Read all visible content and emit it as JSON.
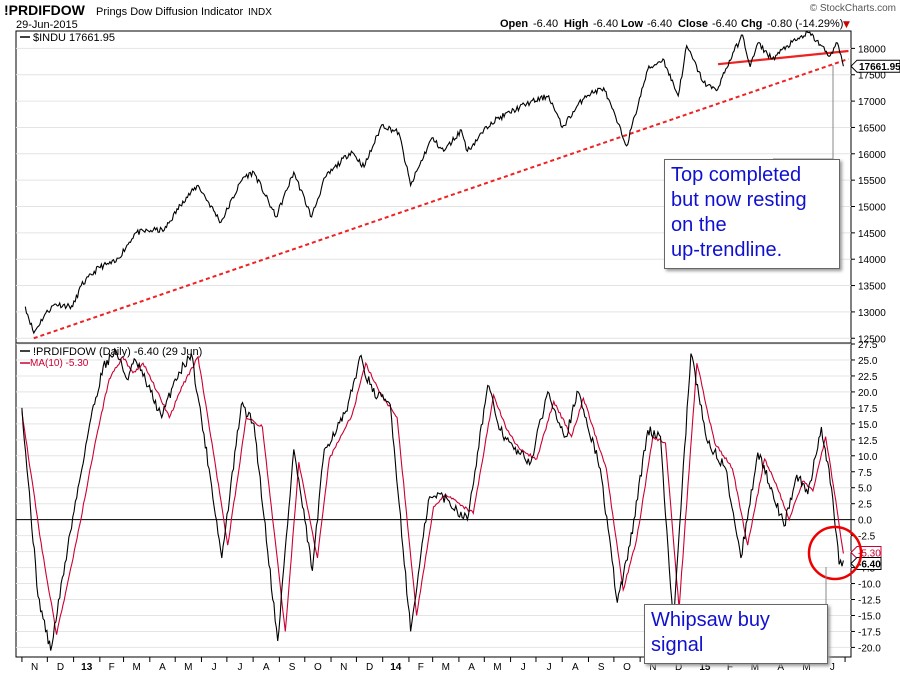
{
  "header": {
    "symbol": "!PRDIFDOW",
    "name": "Prings Dow Diffusion Indicator",
    "exchange": "INDX",
    "date": "29-Jun-2015",
    "brand": "© StockCharts.com",
    "open_label": "Open",
    "open": "-6.40",
    "high_label": "High",
    "high": "-6.40",
    "low_label": "Low",
    "low": "-6.40",
    "close_label": "Close",
    "close": "-6.40",
    "chg_label": "Chg",
    "chg": "-0.80 (-14.29%)",
    "down_arrow": "▼"
  },
  "top_panel": {
    "legend": "$INDU 17661.95",
    "last_value": "17661.95",
    "y_ticks": [
      "12500",
      "13000",
      "13500",
      "14000",
      "14500",
      "15000",
      "15500",
      "16000",
      "16500",
      "17000",
      "17500",
      "18000"
    ]
  },
  "bottom_panel": {
    "legend": "!PRDIFDOW (Daily) -6.40 (29 Jun)",
    "ma_legend": "MA(10) -5.30",
    "last_ma": "-5.30",
    "last_value": "-6.40",
    "y_ticks": [
      "-20.0",
      "-17.5",
      "-15.0",
      "-12.5",
      "-10.0",
      "-7.5",
      "-5.0",
      "-2.5",
      "0.0",
      "2.5",
      "5.0",
      "7.5",
      "10.0",
      "12.5",
      "15.0",
      "17.5",
      "20.0",
      "22.5",
      "25.0",
      "27.5"
    ]
  },
  "x_axis": {
    "labels": [
      "N",
      "D",
      "13",
      "F",
      "M",
      "A",
      "M",
      "J",
      "J",
      "A",
      "S",
      "O",
      "N",
      "D",
      "14",
      "F",
      "M",
      "A",
      "M",
      "J",
      "J",
      "A",
      "S",
      "O",
      "N",
      "D",
      "15",
      "F",
      "M",
      "A",
      "M",
      "J",
      "J"
    ]
  },
  "annotations": {
    "top_callout": [
      "Top completed",
      "but now resting",
      "on the",
      "up-trendline."
    ],
    "bottom_callout": [
      "Whipsaw buy",
      "signal"
    ]
  },
  "colors": {
    "price": "#000000",
    "ma": "#cc0033",
    "trendline": "#ee2222",
    "callout_text": "#1010d0",
    "circle": "#ee0000"
  },
  "chart_data": [
    {
      "type": "line",
      "title": "$INDU 17661.95",
      "x_range": [
        "2012-11",
        "2015-06-29"
      ],
      "ylim": [
        12500,
        18300
      ],
      "series": [
        {
          "name": "$INDU",
          "points": [
            [
              "2012-11-05",
              13100
            ],
            [
              "2012-11-15",
              12600
            ],
            [
              "2012-11-28",
              12950
            ],
            [
              "2012-12-10",
              13150
            ],
            [
              "2012-12-31",
              13100
            ],
            [
              "2013-01-10",
              13500
            ],
            [
              "2013-01-31",
              13850
            ],
            [
              "2013-02-20",
              13950
            ],
            [
              "2013-03-15",
              14500
            ],
            [
              "2013-04-05",
              14550
            ],
            [
              "2013-04-18",
              14550
            ],
            [
              "2013-05-10",
              15100
            ],
            [
              "2013-05-28",
              15400
            ],
            [
              "2013-06-24",
              14700
            ],
            [
              "2013-07-20",
              15550
            ],
            [
              "2013-08-02",
              15650
            ],
            [
              "2013-08-28",
              14800
            ],
            [
              "2013-09-18",
              15650
            ],
            [
              "2013-10-09",
              14800
            ],
            [
              "2013-10-25",
              15550
            ],
            [
              "2013-11-25",
              16050
            ],
            [
              "2013-12-10",
              15750
            ],
            [
              "2013-12-31",
              16550
            ],
            [
              "2014-01-20",
              16400
            ],
            [
              "2014-02-03",
              15400
            ],
            [
              "2014-02-28",
              16300
            ],
            [
              "2014-03-14",
              16050
            ],
            [
              "2014-04-04",
              16450
            ],
            [
              "2014-04-11",
              16050
            ],
            [
              "2014-05-09",
              16600
            ],
            [
              "2014-06-20",
              16950
            ],
            [
              "2014-07-16",
              17100
            ],
            [
              "2014-08-01",
              16500
            ],
            [
              "2014-08-28",
              17100
            ],
            [
              "2014-09-19",
              17250
            ],
            [
              "2014-10-16",
              16150
            ],
            [
              "2014-11-10",
              17600
            ],
            [
              "2014-11-28",
              17800
            ],
            [
              "2014-12-16",
              17100
            ],
            [
              "2014-12-26",
              18050
            ],
            [
              "2015-01-15",
              17350
            ],
            [
              "2015-01-30",
              17200
            ],
            [
              "2015-02-20",
              17950
            ],
            [
              "2015-03-02",
              18250
            ],
            [
              "2015-03-11",
              17650
            ],
            [
              "2015-03-20",
              18100
            ],
            [
              "2015-04-06",
              17800
            ],
            [
              "2015-04-24",
              18050
            ],
            [
              "2015-05-19",
              18300
            ],
            [
              "2015-06-03",
              18050
            ],
            [
              "2015-06-12",
              17850
            ],
            [
              "2015-06-22",
              18100
            ],
            [
              "2015-06-29",
              17662
            ]
          ]
        }
      ],
      "trendlines": [
        {
          "name": "up-trendline",
          "from": [
            "2012-11-15",
            12500
          ],
          "to": [
            "2015-07-05",
            17800
          ],
          "style": "dashed"
        },
        {
          "name": "top",
          "from": [
            "2015-02-01",
            17700
          ],
          "to": [
            "2015-07-05",
            17950
          ],
          "style": "solid"
        }
      ]
    },
    {
      "type": "line",
      "title": "!PRDIFDOW (Daily) -6.40 (29 Jun)",
      "ylim": [
        -21.5,
        27.5
      ],
      "series": [
        {
          "name": "!PRDIFDOW",
          "points": [
            [
              "2012-11-01",
              17.5
            ],
            [
              "2012-11-20",
              -12
            ],
            [
              "2012-12-05",
              -20.5
            ],
            [
              "2012-12-28",
              -2
            ],
            [
              "2013-01-20",
              15
            ],
            [
              "2013-02-05",
              24
            ],
            [
              "2013-02-20",
              26.5
            ],
            [
              "2013-03-05",
              22
            ],
            [
              "2013-03-15",
              25
            ],
            [
              "2013-04-02",
              20
            ],
            [
              "2013-04-15",
              16
            ],
            [
              "2013-05-01",
              22
            ],
            [
              "2013-05-20",
              26
            ],
            [
              "2013-06-10",
              8
            ],
            [
              "2013-06-25",
              -6
            ],
            [
              "2013-07-18",
              18
            ],
            [
              "2013-08-02",
              15
            ],
            [
              "2013-08-30",
              -19
            ],
            [
              "2013-09-18",
              11
            ],
            [
              "2013-10-10",
              -8
            ],
            [
              "2013-10-24",
              11
            ],
            [
              "2013-11-20",
              17
            ],
            [
              "2013-12-05",
              25.5
            ],
            [
              "2013-12-20",
              20
            ],
            [
              "2014-01-10",
              18
            ],
            [
              "2014-02-03",
              -17.5
            ],
            [
              "2014-02-24",
              3
            ],
            [
              "2014-03-10",
              4
            ],
            [
              "2014-04-11",
              0
            ],
            [
              "2014-05-05",
              21
            ],
            [
              "2014-05-20",
              14
            ],
            [
              "2014-06-05",
              11
            ],
            [
              "2014-06-25",
              9
            ],
            [
              "2014-07-15",
              20
            ],
            [
              "2014-08-05",
              13
            ],
            [
              "2014-08-20",
              20
            ],
            [
              "2014-09-15",
              8
            ],
            [
              "2014-10-05",
              -13
            ],
            [
              "2014-10-20",
              -4
            ],
            [
              "2014-11-10",
              14
            ],
            [
              "2014-11-25",
              13
            ],
            [
              "2014-12-10",
              -16.5
            ],
            [
              "2014-12-31",
              26
            ],
            [
              "2015-01-20",
              12
            ],
            [
              "2015-02-10",
              8
            ],
            [
              "2015-02-28",
              -6
            ],
            [
              "2015-03-20",
              10.5
            ],
            [
              "2015-04-05",
              5
            ],
            [
              "2015-04-20",
              -1
            ],
            [
              "2015-05-05",
              7
            ],
            [
              "2015-05-18",
              4
            ],
            [
              "2015-06-03",
              14.5
            ],
            [
              "2015-06-15",
              5
            ],
            [
              "2015-06-24",
              -7
            ],
            [
              "2015-06-29",
              -6.4
            ]
          ]
        },
        {
          "name": "MA(10)",
          "points": [
            [
              "2012-11-01",
              17
            ],
            [
              "2012-11-25",
              -5
            ],
            [
              "2012-12-12",
              -18
            ],
            [
              "2013-01-05",
              -3
            ],
            [
              "2013-01-28",
              13
            ],
            [
              "2013-02-12",
              22
            ],
            [
              "2013-02-28",
              25.5
            ],
            [
              "2013-03-12",
              23
            ],
            [
              "2013-03-24",
              24.5
            ],
            [
              "2013-04-10",
              20
            ],
            [
              "2013-04-24",
              16
            ],
            [
              "2013-05-10",
              21
            ],
            [
              "2013-05-28",
              25.5
            ],
            [
              "2013-06-18",
              8
            ],
            [
              "2013-07-02",
              -4
            ],
            [
              "2013-07-24",
              16
            ],
            [
              "2013-08-12",
              14.5
            ],
            [
              "2013-09-08",
              -17.5
            ],
            [
              "2013-09-24",
              9
            ],
            [
              "2013-10-16",
              -6
            ],
            [
              "2013-10-30",
              9.5
            ],
            [
              "2013-11-26",
              16.5
            ],
            [
              "2013-12-12",
              24.5
            ],
            [
              "2013-12-28",
              20
            ],
            [
              "2014-01-18",
              16
            ],
            [
              "2014-02-10",
              -15
            ],
            [
              "2014-03-02",
              2
            ],
            [
              "2014-03-16",
              4
            ],
            [
              "2014-04-18",
              1
            ],
            [
              "2014-05-12",
              19.5
            ],
            [
              "2014-05-28",
              14
            ],
            [
              "2014-06-12",
              11
            ],
            [
              "2014-07-02",
              9.5
            ],
            [
              "2014-07-22",
              18.5
            ],
            [
              "2014-08-12",
              13
            ],
            [
              "2014-08-26",
              19
            ],
            [
              "2014-09-22",
              8
            ],
            [
              "2014-10-12",
              -11
            ],
            [
              "2014-10-28",
              -3
            ],
            [
              "2014-11-16",
              13
            ],
            [
              "2014-12-01",
              12
            ],
            [
              "2014-12-17",
              -14
            ],
            [
              "2015-01-07",
              24.5
            ],
            [
              "2015-01-28",
              12
            ],
            [
              "2015-02-18",
              8
            ],
            [
              "2015-03-08",
              -4
            ],
            [
              "2015-03-28",
              9.5
            ],
            [
              "2015-04-12",
              5
            ],
            [
              "2015-04-26",
              0
            ],
            [
              "2015-05-12",
              6
            ],
            [
              "2015-05-24",
              4.5
            ],
            [
              "2015-06-08",
              13
            ],
            [
              "2015-06-20",
              3
            ],
            [
              "2015-06-29",
              -5.3
            ]
          ]
        }
      ]
    }
  ]
}
